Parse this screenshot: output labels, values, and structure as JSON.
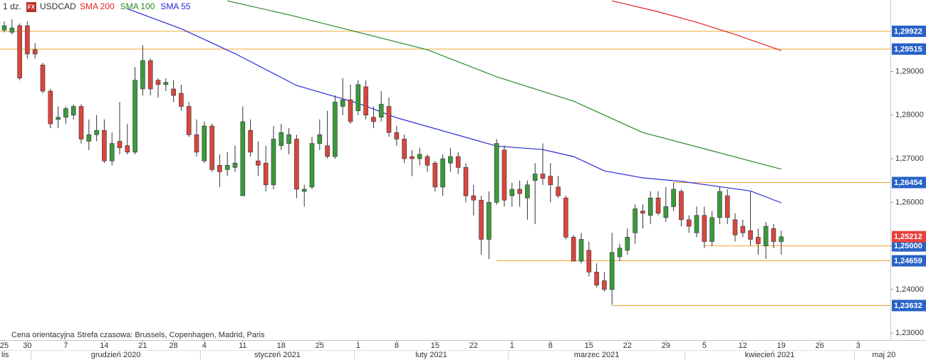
{
  "chart_data": {
    "type": "candlestick",
    "interval": "1 dz.",
    "badge": "FX",
    "title": "USDCAD",
    "up_color": "#3a9a3a",
    "down_color": "#d9463f",
    "x": [
      "2020-11-25",
      "2020-11-26",
      "2020-11-27",
      "2020-11-30",
      "2020-12-01",
      "2020-12-02",
      "2020-12-03",
      "2020-12-04",
      "2020-12-07",
      "2020-12-08",
      "2020-12-09",
      "2020-12-10",
      "2020-12-11",
      "2020-12-14",
      "2020-12-15",
      "2020-12-16",
      "2020-12-17",
      "2020-12-18",
      "2020-12-21",
      "2020-12-22",
      "2020-12-23",
      "2020-12-24",
      "2020-12-28",
      "2020-12-29",
      "2020-12-30",
      "2020-12-31",
      "2021-01-04",
      "2021-01-05",
      "2021-01-06",
      "2021-01-07",
      "2021-01-08",
      "2021-01-11",
      "2021-01-12",
      "2021-01-13",
      "2021-01-14",
      "2021-01-15",
      "2021-01-18",
      "2021-01-19",
      "2021-01-20",
      "2021-01-21",
      "2021-01-22",
      "2021-01-25",
      "2021-01-26",
      "2021-01-27",
      "2021-01-28",
      "2021-01-29",
      "2021-02-01",
      "2021-02-02",
      "2021-02-03",
      "2021-02-04",
      "2021-02-05",
      "2021-02-08",
      "2021-02-09",
      "2021-02-10",
      "2021-02-11",
      "2021-02-12",
      "2021-02-15",
      "2021-02-16",
      "2021-02-17",
      "2021-02-18",
      "2021-02-19",
      "2021-02-22",
      "2021-02-23",
      "2021-02-24",
      "2021-02-25",
      "2021-02-26",
      "2021-03-01",
      "2021-03-02",
      "2021-03-03",
      "2021-03-04",
      "2021-03-05",
      "2021-03-08",
      "2021-03-09",
      "2021-03-10",
      "2021-03-11",
      "2021-03-12",
      "2021-03-15",
      "2021-03-16",
      "2021-03-17",
      "2021-03-18",
      "2021-03-19",
      "2021-03-22",
      "2021-03-23",
      "2021-03-24",
      "2021-03-25",
      "2021-03-26",
      "2021-03-29",
      "2021-03-30",
      "2021-03-31",
      "2021-04-01",
      "2021-04-02",
      "2021-04-05",
      "2021-04-06",
      "2021-04-07",
      "2021-04-08",
      "2021-04-09",
      "2021-04-12",
      "2021-04-13",
      "2021-04-14",
      "2021-04-15",
      "2021-04-16",
      "2021-04-19"
    ],
    "open": [
      1.2995,
      1.299,
      1.3005,
      1.3005,
      1.295,
      1.2915,
      1.2855,
      1.279,
      1.2795,
      1.28,
      1.282,
      1.274,
      1.2755,
      1.2765,
      1.2695,
      1.274,
      1.273,
      1.2715,
      1.286,
      1.2925,
      1.288,
      1.287,
      1.286,
      1.285,
      1.282,
      1.2755,
      1.2695,
      1.2775,
      1.2685,
      1.2675,
      1.268,
      1.2615,
      1.2765,
      1.2695,
      1.269,
      1.264,
      1.273,
      1.2735,
      1.2745,
      1.2625,
      1.2635,
      1.2735,
      1.273,
      1.2705,
      1.282,
      1.2835,
      1.281,
      1.2865,
      1.2795,
      1.2795,
      1.282,
      1.276,
      1.2745,
      1.2705,
      1.27,
      1.2705,
      1.269,
      1.2635,
      1.269,
      1.2705,
      1.268,
      1.2615,
      1.2605,
      1.2515,
      1.26,
      1.272,
      1.2615,
      1.263,
      1.261,
      1.265,
      1.2665,
      1.266,
      1.2635,
      1.261,
      1.252,
      1.2465,
      1.249,
      1.244,
      1.242,
      1.24,
      1.2475,
      1.249,
      1.253,
      1.258,
      1.257,
      1.261,
      1.2565,
      1.259,
      1.2625,
      1.256,
      1.253,
      1.257,
      1.251,
      1.2565,
      1.2615,
      1.256,
      1.2545,
      1.2535,
      1.252,
      1.25,
      1.254,
      1.251
    ],
    "high": [
      1.3015,
      1.302,
      1.301,
      1.3015,
      1.2965,
      1.292,
      1.286,
      1.282,
      1.282,
      1.2825,
      1.2825,
      1.279,
      1.28,
      1.279,
      1.276,
      1.283,
      1.278,
      1.291,
      1.296,
      1.293,
      1.2885,
      1.2885,
      1.288,
      1.287,
      1.283,
      1.279,
      1.2785,
      1.278,
      1.271,
      1.2715,
      1.273,
      1.282,
      1.279,
      1.274,
      1.273,
      1.2775,
      1.278,
      1.277,
      1.2755,
      1.264,
      1.275,
      1.279,
      1.281,
      1.2845,
      1.2885,
      1.287,
      1.288,
      1.288,
      1.282,
      1.2855,
      1.284,
      1.2775,
      1.2755,
      1.272,
      1.2725,
      1.271,
      1.2695,
      1.271,
      1.2725,
      1.2715,
      1.269,
      1.264,
      1.2615,
      1.2625,
      1.2745,
      1.273,
      1.2645,
      1.265,
      1.265,
      1.269,
      1.2735,
      1.269,
      1.266,
      1.2615,
      1.2525,
      1.253,
      1.251,
      1.246,
      1.244,
      1.253,
      1.2505,
      1.254,
      1.2595,
      1.2595,
      1.2625,
      1.2625,
      1.2635,
      1.2645,
      1.263,
      1.257,
      1.259,
      1.259,
      1.258,
      1.2635,
      1.263,
      1.2575,
      1.256,
      1.2625,
      1.254,
      1.2555,
      1.255,
      1.2535
    ],
    "low": [
      1.299,
      1.2985,
      1.288,
      1.293,
      1.293,
      1.285,
      1.277,
      1.277,
      1.278,
      1.279,
      1.2735,
      1.272,
      1.274,
      1.269,
      1.2685,
      1.271,
      1.271,
      1.271,
      1.2845,
      1.2845,
      1.284,
      1.2855,
      1.283,
      1.281,
      1.275,
      1.2705,
      1.269,
      1.267,
      1.2635,
      1.266,
      1.267,
      1.2615,
      1.2705,
      1.266,
      1.2625,
      1.263,
      1.272,
      1.271,
      1.261,
      1.259,
      1.263,
      1.272,
      1.27,
      1.27,
      1.28,
      1.278,
      1.28,
      1.279,
      1.277,
      1.2785,
      1.275,
      1.273,
      1.269,
      1.266,
      1.2685,
      1.267,
      1.2625,
      1.2615,
      1.267,
      1.2665,
      1.26,
      1.257,
      1.248,
      1.247,
      1.2595,
      1.259,
      1.259,
      1.259,
      1.256,
      1.255,
      1.264,
      1.26,
      1.261,
      1.2515,
      1.2465,
      1.246,
      1.243,
      1.2405,
      1.2395,
      1.2365,
      1.2465,
      1.248,
      1.2505,
      1.254,
      1.255,
      1.257,
      1.2555,
      1.258,
      1.2545,
      1.253,
      1.252,
      1.2495,
      1.25,
      1.255,
      1.255,
      1.251,
      1.252,
      1.25,
      1.248,
      1.247,
      1.2495,
      1.248
    ],
    "close": [
      1.3005,
      1.3,
      1.2885,
      1.294,
      1.294,
      1.2855,
      1.278,
      1.2795,
      1.2815,
      1.282,
      1.2745,
      1.2755,
      1.2765,
      1.2695,
      1.2735,
      1.2725,
      1.2715,
      1.288,
      1.2925,
      1.286,
      1.287,
      1.2875,
      1.2845,
      1.282,
      1.2755,
      1.2715,
      1.2775,
      1.2675,
      1.267,
      1.2685,
      1.269,
      1.2785,
      1.2715,
      1.2685,
      1.264,
      1.2745,
      1.276,
      1.2755,
      1.263,
      1.263,
      1.2735,
      1.2755,
      1.2705,
      1.283,
      1.2835,
      1.2785,
      1.287,
      1.28,
      1.2785,
      1.2825,
      1.276,
      1.2745,
      1.27,
      1.27,
      1.271,
      1.2685,
      1.2635,
      1.27,
      1.2705,
      1.268,
      1.2615,
      1.2605,
      1.2515,
      1.26,
      1.2735,
      1.2605,
      1.263,
      1.262,
      1.264,
      1.2665,
      1.2655,
      1.264,
      1.2615,
      1.252,
      1.2465,
      1.2515,
      1.244,
      1.241,
      1.24,
      1.2485,
      1.2495,
      1.252,
      1.2585,
      1.2575,
      1.261,
      1.2575,
      1.259,
      1.263,
      1.256,
      1.2545,
      1.257,
      1.251,
      1.2565,
      1.2625,
      1.2565,
      1.2525,
      1.253,
      1.2515,
      1.2505,
      1.2545,
      1.251,
      1.2521
    ],
    "overlays": [
      {
        "name": "SMA 200",
        "color": "#e02424",
        "x": [
          "2021-03-18",
          "2021-03-26",
          "2021-04-02",
          "2021-04-09",
          "2021-04-19"
        ],
        "values": [
          1.3062,
          1.3037,
          1.3013,
          1.2985,
          1.2948
        ]
      },
      {
        "name": "SMA 100",
        "color": "#2a8a2a",
        "x": [
          "2021-01-07",
          "2021-01-19",
          "2021-02-01",
          "2021-02-12",
          "2021-02-25",
          "2021-03-11",
          "2021-03-24",
          "2021-04-06",
          "2021-04-19"
        ],
        "values": [
          1.3062,
          1.303,
          1.299,
          1.295,
          1.2888,
          1.2832,
          1.276,
          1.2718,
          1.2676
        ]
      },
      {
        "name": "SMA 55",
        "color": "#2a2ad8",
        "x": [
          "2020-12-17",
          "2020-12-29",
          "2021-01-08",
          "2021-01-20",
          "2021-02-01",
          "2021-02-08",
          "2021-02-18",
          "2021-02-25",
          "2021-03-05",
          "2021-03-11",
          "2021-03-17",
          "2021-03-24",
          "2021-03-31",
          "2021-04-13",
          "2021-04-19"
        ],
        "values": [
          1.3044,
          1.2998,
          1.2941,
          1.2868,
          1.2827,
          1.2794,
          1.2754,
          1.2729,
          1.2721,
          1.2705,
          1.2672,
          1.2656,
          1.2648,
          1.2626,
          1.2599
        ]
      }
    ],
    "levels": [
      {
        "value": 1.29922,
        "label": "1,29922"
      },
      {
        "value": 1.29515,
        "label": "1,29515"
      },
      {
        "value": 1.26454,
        "label": "1,26454",
        "from": "2021-03-30"
      },
      {
        "value": 1.25,
        "label": "1,25000",
        "from": "2021-04-05"
      },
      {
        "value": 1.24659,
        "label": "1,24659",
        "from": "2021-02-25"
      },
      {
        "value": 1.23632,
        "label": "1,23632",
        "from": "2021-03-18"
      }
    ],
    "level_color": "#f0a830",
    "last_price": {
      "value": 1.25212,
      "label": "1,25212",
      "color": "#e8403a"
    },
    "ylim": [
      1.2284,
      1.3064
    ],
    "yticks": [
      {
        "value": 1.29,
        "label": "1,29000"
      },
      {
        "value": 1.28,
        "label": "1,28000"
      },
      {
        "value": 1.27,
        "label": "1,27000"
      },
      {
        "value": 1.26,
        "label": "1,26000"
      },
      {
        "value": 1.25,
        "label": "1,25000"
      },
      {
        "value": 1.24,
        "label": "1,24000"
      },
      {
        "value": 1.23,
        "label": "1,23000"
      }
    ],
    "xticks": [
      {
        "value": "2020-11-25",
        "label": "25"
      },
      {
        "value": "2020-11-30",
        "label": "30"
      },
      {
        "value": "2020-12-07",
        "label": "7"
      },
      {
        "value": "2020-12-14",
        "label": "14"
      },
      {
        "value": "2020-12-21",
        "label": "21"
      },
      {
        "value": "2020-12-28",
        "label": "28"
      },
      {
        "value": "2021-01-04",
        "label": "4"
      },
      {
        "value": "2021-01-11",
        "label": "11"
      },
      {
        "value": "2021-01-18",
        "label": "18"
      },
      {
        "value": "2021-01-25",
        "label": "25"
      },
      {
        "value": "2021-02-01",
        "label": "1"
      },
      {
        "value": "2021-02-08",
        "label": "8"
      },
      {
        "value": "2021-02-15",
        "label": "15"
      },
      {
        "value": "2021-02-22",
        "label": "22"
      },
      {
        "value": "2021-03-01",
        "label": "1"
      },
      {
        "value": "2021-03-08",
        "label": "8"
      },
      {
        "value": "2021-03-15",
        "label": "15"
      },
      {
        "value": "2021-03-22",
        "label": "22"
      },
      {
        "value": "2021-03-29",
        "label": "29"
      },
      {
        "value": "2021-04-05",
        "label": "5"
      },
      {
        "value": "2021-04-12",
        "label": "12"
      },
      {
        "value": "2021-04-19",
        "label": "19"
      },
      {
        "value": "2021-04-26",
        "label": "26"
      },
      {
        "value": "2021-05-03",
        "label": "3"
      }
    ],
    "month_labels": [
      {
        "value": "2020-11",
        "label": "lis"
      },
      {
        "value": "2020-12",
        "label": "grudzień 2020"
      },
      {
        "value": "2021-01",
        "label": "styczeń 2021"
      },
      {
        "value": "2021-02",
        "label": "luty 2021"
      },
      {
        "value": "2021-03",
        "label": "marzec 2021"
      },
      {
        "value": "2021-04",
        "label": "kwiecień 2021"
      },
      {
        "value": "2021-05",
        "label": "maj 20"
      }
    ],
    "footnotes": [
      "Cena orientacyjna",
      "Strefa czasowa: Brussels, Copenhagen, Madrid, Paris"
    ]
  }
}
